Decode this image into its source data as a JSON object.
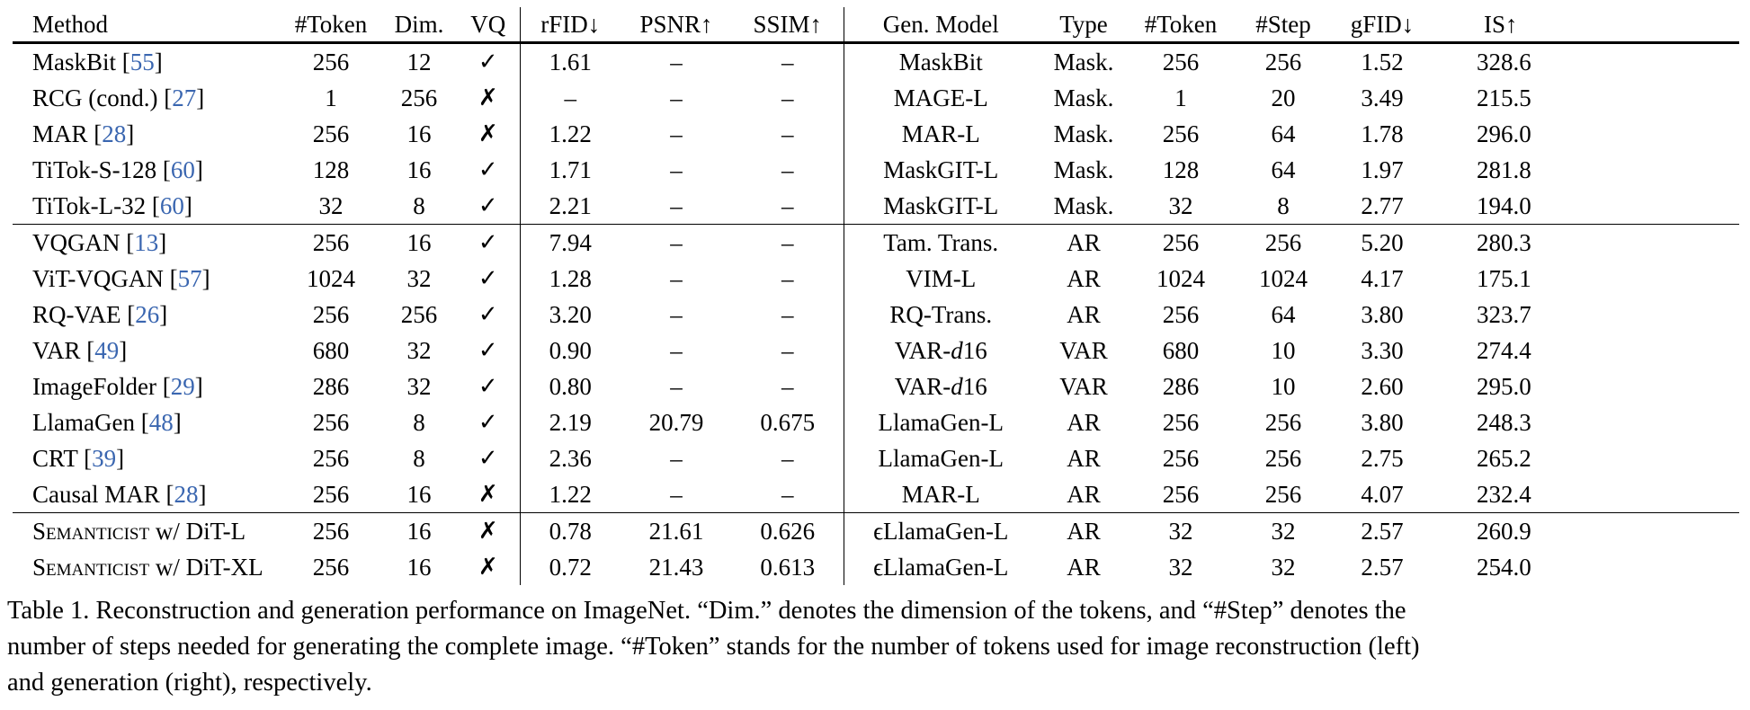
{
  "table": {
    "headers": [
      "Method",
      "#Token",
      "Dim.",
      "VQ",
      "rFID↓",
      "PSNR↑",
      "SSIM↑",
      "Gen. Model",
      "Type",
      "#Token",
      "#Step",
      "gFID↓",
      "IS↑"
    ],
    "groups": [
      [
        {
          "name": "MaskBit",
          "cite": "55",
          "token": "256",
          "dim": "12",
          "vq": "✓",
          "rfid": "1.61",
          "psnr": "–",
          "ssim": "–",
          "gen": "MaskBit",
          "type": "Mask.",
          "gtoken": "256",
          "step": "256",
          "gfid": "1.52",
          "is": "328.6"
        },
        {
          "name": "RCG (cond.)",
          "cite": "27",
          "token": "1",
          "dim": "256",
          "vq": "✗",
          "rfid": "–",
          "psnr": "–",
          "ssim": "–",
          "gen": "MAGE-L",
          "type": "Mask.",
          "gtoken": "1",
          "step": "20",
          "gfid": "3.49",
          "is": "215.5"
        },
        {
          "name": "MAR",
          "cite": "28",
          "token": "256",
          "dim": "16",
          "vq": "✗",
          "rfid": "1.22",
          "psnr": "–",
          "ssim": "–",
          "gen": "MAR-L",
          "type": "Mask.",
          "gtoken": "256",
          "step": "64",
          "gfid": "1.78",
          "is": "296.0"
        },
        {
          "name": "TiTok-S-128",
          "cite": "60",
          "token": "128",
          "dim": "16",
          "vq": "✓",
          "rfid": "1.71",
          "psnr": "–",
          "ssim": "–",
          "gen": "MaskGIT-L",
          "type": "Mask.",
          "gtoken": "128",
          "step": "64",
          "gfid": "1.97",
          "is": "281.8"
        },
        {
          "name": "TiTok-L-32",
          "cite": "60",
          "token": "32",
          "dim": "8",
          "vq": "✓",
          "rfid": "2.21",
          "psnr": "–",
          "ssim": "–",
          "gen": "MaskGIT-L",
          "type": "Mask.",
          "gtoken": "32",
          "step": "8",
          "gfid": "2.77",
          "is": "194.0"
        }
      ],
      [
        {
          "name": "VQGAN",
          "cite": "13",
          "token": "256",
          "dim": "16",
          "vq": "✓",
          "rfid": "7.94",
          "psnr": "–",
          "ssim": "–",
          "gen": "Tam. Trans.",
          "type": "AR",
          "gtoken": "256",
          "step": "256",
          "gfid": "5.20",
          "is": "280.3"
        },
        {
          "name": "ViT-VQGAN",
          "cite": "57",
          "token": "1024",
          "dim": "32",
          "vq": "✓",
          "rfid": "1.28",
          "psnr": "–",
          "ssim": "–",
          "gen": "VIM-L",
          "type": "AR",
          "gtoken": "1024",
          "step": "1024",
          "gfid": "4.17",
          "is": "175.1"
        },
        {
          "name": "RQ-VAE",
          "cite": "26",
          "token": "256",
          "dim": "256",
          "vq": "✓",
          "rfid": "3.20",
          "psnr": "–",
          "ssim": "–",
          "gen": "RQ-Trans.",
          "type": "AR",
          "gtoken": "256",
          "step": "64",
          "gfid": "3.80",
          "is": "323.7"
        },
        {
          "name": "VAR",
          "cite": "49",
          "token": "680",
          "dim": "32",
          "vq": "✓",
          "rfid": "0.90",
          "psnr": "–",
          "ssim": "–",
          "gen": "VAR-",
          "gen_italic": "d",
          "gen_tail": "16",
          "type": "VAR",
          "gtoken": "680",
          "step": "10",
          "gfid": "3.30",
          "is": "274.4"
        },
        {
          "name": "ImageFolder",
          "cite": "29",
          "token": "286",
          "dim": "32",
          "vq": "✓",
          "rfid": "0.80",
          "psnr": "–",
          "ssim": "–",
          "gen": "VAR-",
          "gen_italic": "d",
          "gen_tail": "16",
          "type": "VAR",
          "gtoken": "286",
          "step": "10",
          "gfid": "2.60",
          "is": "295.0"
        },
        {
          "name": "LlamaGen",
          "cite": "48",
          "token": "256",
          "dim": "8",
          "vq": "✓",
          "rfid": "2.19",
          "psnr": "20.79",
          "ssim": "0.675",
          "gen": "LlamaGen-L",
          "type": "AR",
          "gtoken": "256",
          "step": "256",
          "gfid": "3.80",
          "is": "248.3"
        },
        {
          "name": "CRT",
          "cite": "39",
          "token": "256",
          "dim": "8",
          "vq": "✓",
          "rfid": "2.36",
          "psnr": "–",
          "ssim": "–",
          "gen": "LlamaGen-L",
          "type": "AR",
          "gtoken": "256",
          "step": "256",
          "gfid": "2.75",
          "is": "265.2"
        },
        {
          "name": "Causal MAR",
          "cite": "28",
          "token": "256",
          "dim": "16",
          "vq": "✗",
          "rfid": "1.22",
          "psnr": "–",
          "ssim": "–",
          "gen": "MAR-L",
          "type": "AR",
          "gtoken": "256",
          "step": "256",
          "gfid": "4.07",
          "is": "232.4"
        }
      ],
      [
        {
          "name_sc": "Semanticist",
          "name_tail": " w/ DiT-L",
          "token": "256",
          "dim": "16",
          "vq": "✗",
          "rfid": "0.78",
          "psnr": "21.61",
          "ssim": "0.626",
          "gen_prefix": "ϵ",
          "gen": "LlamaGen-L",
          "type": "AR",
          "gtoken": "32",
          "step": "32",
          "gfid": "2.57",
          "is": "260.9"
        },
        {
          "name_sc": "Semanticist",
          "name_tail": " w/ DiT-XL",
          "token": "256",
          "dim": "16",
          "vq": "✗",
          "rfid": "0.72",
          "psnr": "21.43",
          "ssim": "0.613",
          "gen_prefix": "ϵ",
          "gen": "LlamaGen-L",
          "type": "AR",
          "gtoken": "32",
          "step": "32",
          "gfid": "2.57",
          "is": "254.0"
        }
      ]
    ]
  },
  "caption": {
    "lines": [
      "Table 1. Reconstruction and generation performance on ImageNet. “Dim.” denotes the dimension of the tokens, and “#Step” denotes the",
      "number of steps needed for generating the complete image. “#Token” stands for the number of tokens used for image reconstruction (left)",
      "and generation (right), respectively."
    ]
  }
}
